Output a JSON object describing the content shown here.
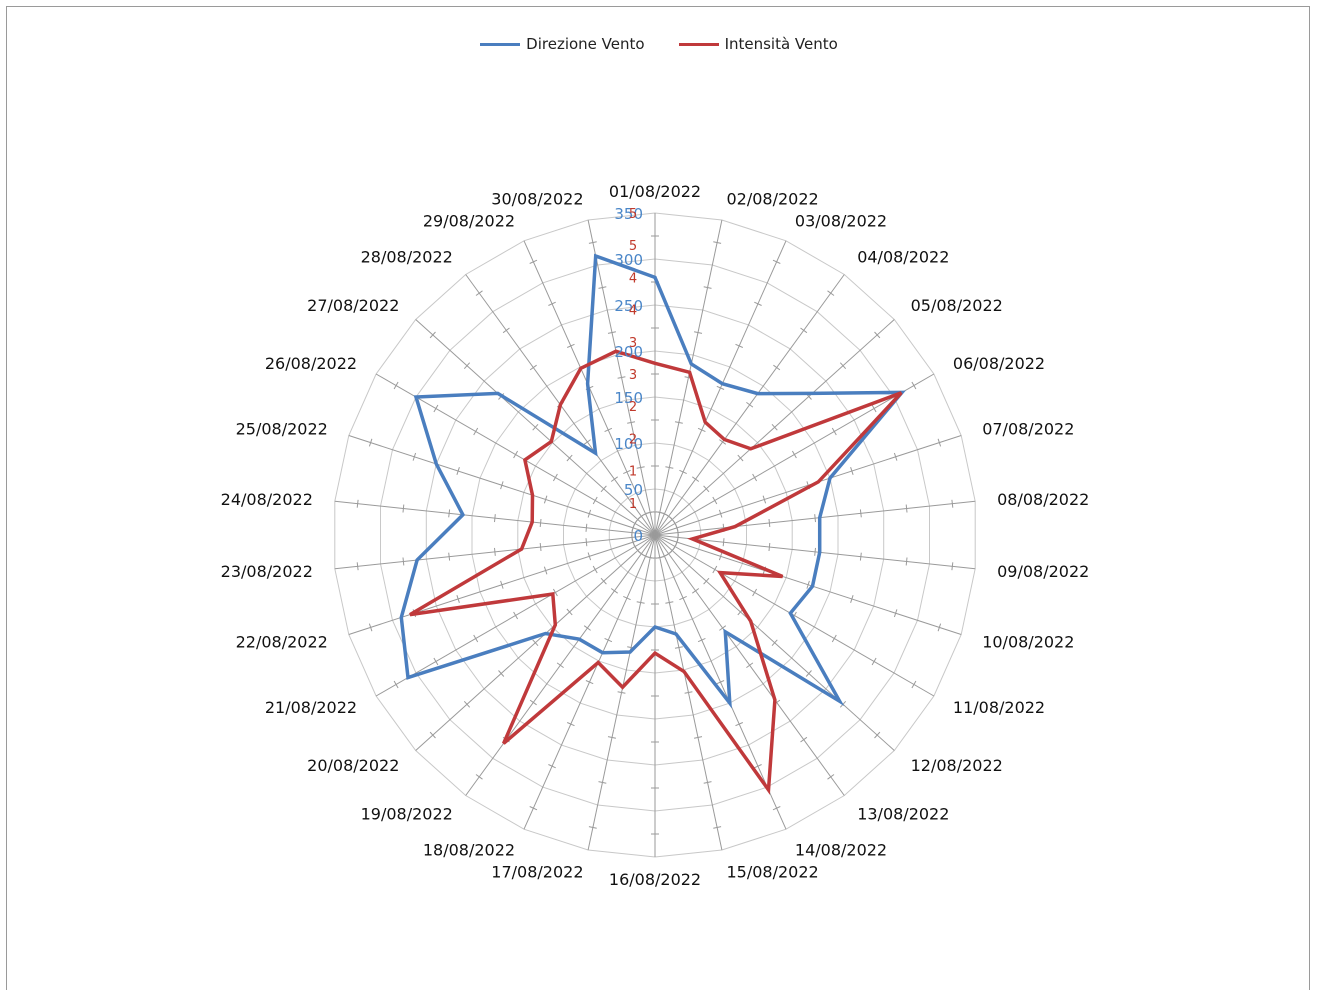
{
  "chart_data": {
    "type": "radar",
    "title": "",
    "legend_position": "top",
    "grid": true,
    "categories": [
      "01/08/2022",
      "02/08/2022",
      "03/08/2022",
      "04/08/2022",
      "05/08/2022",
      "06/08/2022",
      "07/08/2022",
      "08/08/2022",
      "09/08/2022",
      "10/08/2022",
      "11/08/2022",
      "12/08/2022",
      "13/08/2022",
      "14/08/2022",
      "15/08/2022",
      "16/08/2022",
      "17/08/2022",
      "18/08/2022",
      "19/08/2022",
      "20/08/2022",
      "21/08/2022",
      "22/08/2022",
      "23/08/2022",
      "24/08/2022",
      "25/08/2022",
      "26/08/2022",
      "27/08/2022",
      "28/08/2022",
      "29/08/2022",
      "30/08/2022"
    ],
    "series": [
      {
        "name": "Direzione Vento",
        "color": "#4a7ebf",
        "values": [
          280,
          190,
          180,
          190,
          230,
          310,
          200,
          180,
          180,
          180,
          170,
          270,
          130,
          200,
          110,
          100,
          130,
          140,
          140,
          160,
          310,
          290,
          260,
          210,
          250,
          300,
          230,
          110,
          180,
          310
        ]
      },
      {
        "name": "Intensità Vento",
        "color": "#c0393b",
        "values": [
          3.2,
          3.1,
          2.3,
          2.2,
          2.4,
          5.3,
          3.2,
          1.5,
          0.7,
          2.5,
          1.4,
          2.4,
          3.8,
          5.2,
          2.6,
          2.2,
          2.9,
          2.6,
          4.8,
          2.5,
          2.2,
          4.8,
          2.5,
          2.3,
          2.4,
          2.8,
          2.6,
          3.0,
          3.4,
          3.5
        ]
      }
    ],
    "axis_blue": {
      "range": [
        0,
        350
      ],
      "ticks": [
        "0",
        "50",
        "100",
        "150",
        "200",
        "250",
        "300",
        "350"
      ]
    },
    "axis_red": {
      "range": [
        0,
        6
      ],
      "ticks": [
        "1",
        "1",
        "2",
        "2",
        "3",
        "3",
        "4",
        "4",
        "5",
        "5"
      ]
    }
  }
}
